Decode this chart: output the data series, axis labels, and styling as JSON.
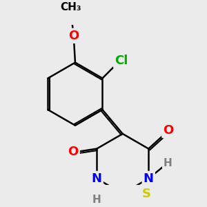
{
  "background_color": "#ebebeb",
  "bond_color": "#000000",
  "bond_width": 1.8,
  "dbo": 0.055,
  "atom_colors": {
    "O": "#ff0000",
    "N": "#0000ff",
    "S": "#cccc00",
    "Cl": "#00aa00",
    "H": "#7f7f7f",
    "C": "#000000"
  },
  "font_size": 13
}
